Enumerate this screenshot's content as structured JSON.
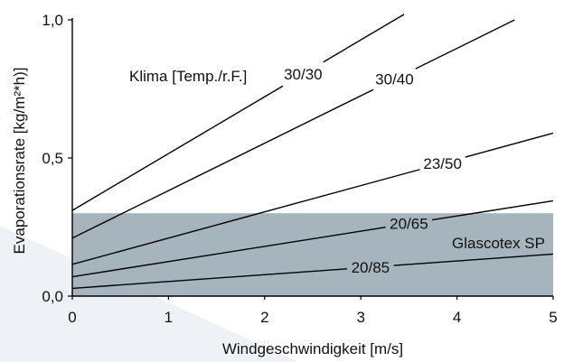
{
  "chart_data": {
    "type": "line",
    "xlabel": "Windgeschwindigkeit [m/s]",
    "ylabel": "Evaporationsrate [kg/m²*h)]",
    "xlim": [
      0,
      5
    ],
    "ylim": [
      0,
      1.0
    ],
    "x_ticks": [
      "0",
      "1",
      "2",
      "3",
      "4",
      "5"
    ],
    "y_ticks": [
      {
        "value": 0.0,
        "label": "0,0"
      },
      {
        "value": 0.5,
        "label": "0,5"
      },
      {
        "value": 1.0,
        "label": "1,0"
      }
    ],
    "grid": false,
    "legend_title": "Klima [Temp./r.F.]",
    "series": [
      {
        "name": "30/30",
        "points": [
          [
            0,
            0.31
          ],
          [
            3.45,
            1.02
          ]
        ],
        "label_at": 2.4
      },
      {
        "name": "30/40",
        "points": [
          [
            0,
            0.21
          ],
          [
            4.6,
            1.0
          ]
        ],
        "label_at": 3.35
      },
      {
        "name": "23/50",
        "points": [
          [
            0,
            0.115
          ],
          [
            5,
            0.59
          ]
        ],
        "label_at": 3.85
      },
      {
        "name": "20/65",
        "points": [
          [
            0,
            0.07
          ],
          [
            5,
            0.345
          ]
        ],
        "label_at": 3.5
      },
      {
        "name": "20/85",
        "points": [
          [
            0,
            0.028
          ],
          [
            5,
            0.152
          ]
        ],
        "label_at": 3.1
      }
    ],
    "band": {
      "name": "Glascotex SP",
      "y_range": [
        0,
        0.3
      ],
      "color": "#a6b4bd"
    },
    "colors": {
      "line": "#000000",
      "axis": "#000000",
      "background_shape": "#eef2f6"
    }
  }
}
